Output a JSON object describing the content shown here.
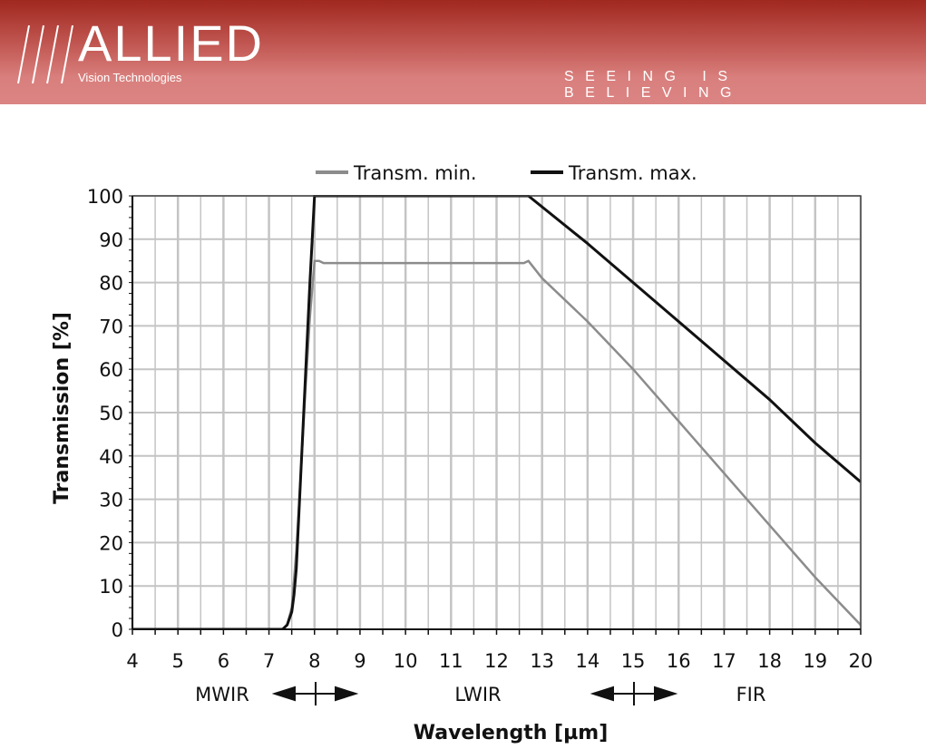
{
  "header": {
    "brand": "ALLIED",
    "subtitle": "Vision Technologies",
    "slogan": "SEEING IS BELIEVING"
  },
  "chart_data": {
    "type": "line",
    "xlabel": "Wavelength [µm]",
    "ylabel": "Transmission [%]",
    "xlim": [
      4,
      20
    ],
    "ylim": [
      0,
      100
    ],
    "xticks": [
      4,
      5,
      6,
      7,
      8,
      9,
      10,
      11,
      12,
      13,
      14,
      15,
      16,
      17,
      18,
      19,
      20
    ],
    "yticks": [
      0,
      10,
      20,
      30,
      40,
      50,
      60,
      70,
      80,
      90,
      100
    ],
    "grid": true,
    "legend": "top",
    "series": [
      {
        "name": "Transm. min.",
        "color": "#8c8c8c",
        "x": [
          4,
          7.3,
          7.4,
          7.5,
          7.6,
          7.7,
          7.8,
          7.9,
          8.0,
          8.1,
          8.2,
          12.6,
          12.7,
          13.0,
          14,
          15,
          16,
          17,
          18,
          19,
          20
        ],
        "y": [
          0,
          0,
          1,
          5,
          18,
          36,
          55,
          72,
          85,
          85,
          84.5,
          84.5,
          85,
          81,
          71,
          60,
          48,
          36,
          24,
          12,
          1
        ]
      },
      {
        "name": "Transm. max.",
        "color": "#111111",
        "x": [
          4,
          7.3,
          7.4,
          7.5,
          7.55,
          7.6,
          7.7,
          7.8,
          7.9,
          8.0,
          12.7,
          14,
          15,
          16,
          17,
          18,
          19,
          20
        ],
        "y": [
          0,
          0,
          1,
          4,
          8,
          14,
          36,
          58,
          80,
          100,
          100,
          89,
          80,
          71,
          62,
          53,
          43,
          34
        ]
      }
    ],
    "annotations": [
      {
        "label": "MWIR",
        "boundary": 8
      },
      {
        "label": "LWIR"
      },
      {
        "label": "FIR",
        "boundary": 15
      }
    ]
  }
}
